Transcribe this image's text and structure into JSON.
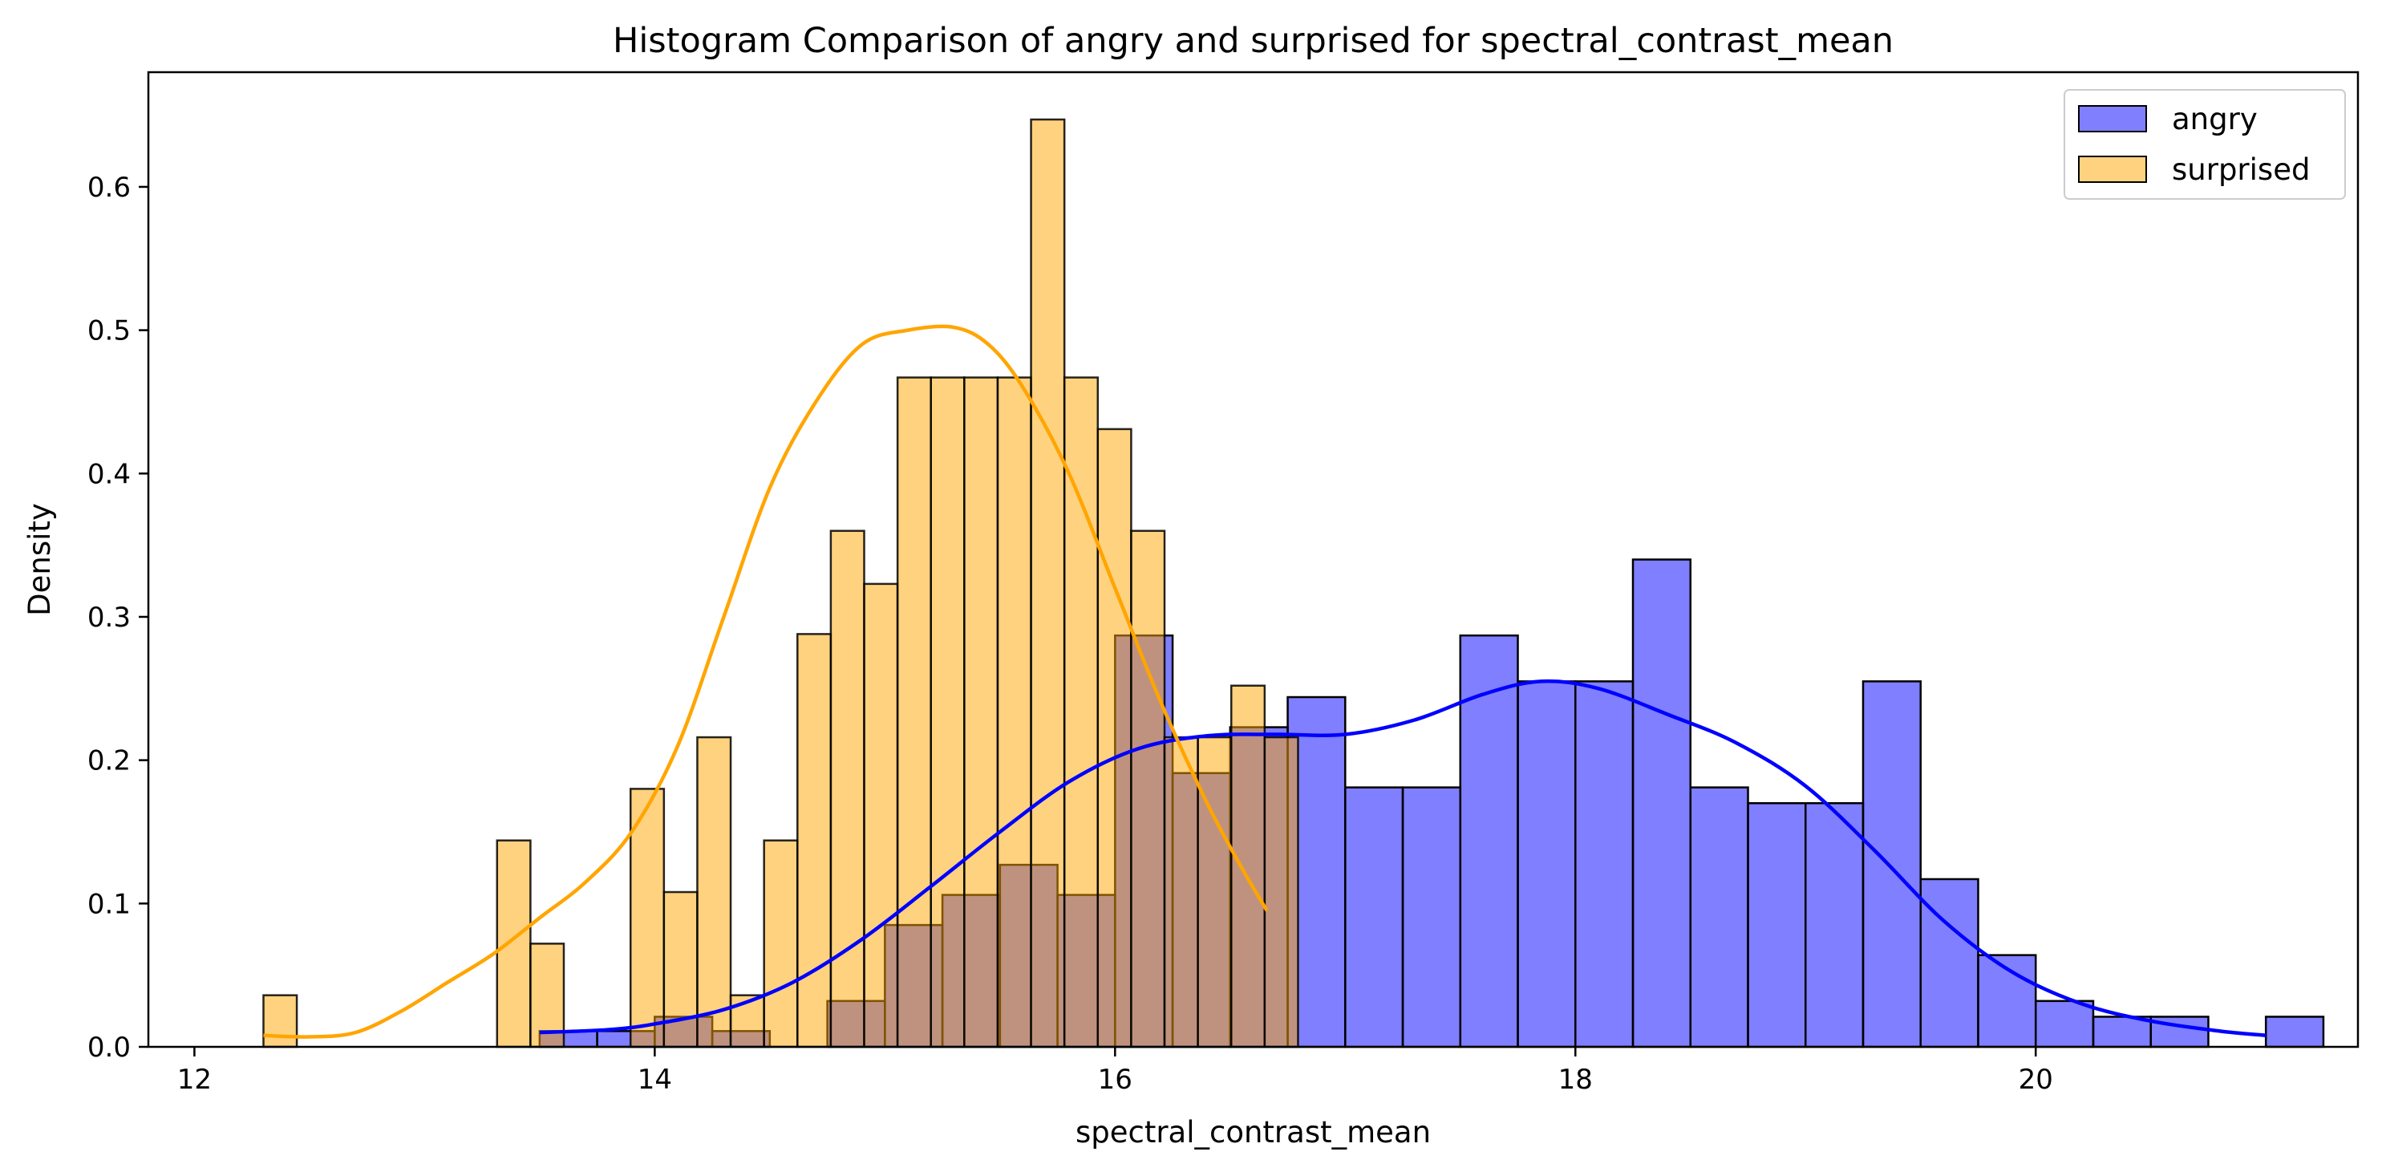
{
  "chart_data": {
    "type": "bar",
    "subtype": "overlaid histogram with kde curves",
    "title": "Histogram Comparison of angry and surprised for spectral_contrast_mean",
    "xlabel": "spectral_contrast_mean",
    "ylabel": "Density",
    "xlim": [
      11.8,
      21.4
    ],
    "ylim": [
      0,
      0.68
    ],
    "xticks": [
      12,
      14,
      16,
      18,
      20
    ],
    "yticks": [
      0.0,
      0.1,
      0.2,
      0.3,
      0.4,
      0.5,
      0.6
    ],
    "xtick_labels": [
      "12",
      "14",
      "16",
      "18",
      "20"
    ],
    "ytick_labels": [
      "0.0",
      "0.1",
      "0.2",
      "0.3",
      "0.4",
      "0.5",
      "0.6"
    ],
    "grid": false,
    "legend_position": "top-right",
    "series": [
      {
        "name": "angry",
        "color": "#0000ff",
        "fill_color": "#8080ff",
        "bin_start": 13.5,
        "bin_width": 0.25,
        "values": [
          0.011,
          0.011,
          0.021,
          0.011,
          0.0,
          0.032,
          0.085,
          0.106,
          0.127,
          0.106,
          0.287,
          0.191,
          0.223,
          0.244,
          0.181,
          0.181,
          0.287,
          0.255,
          0.255,
          0.34,
          0.181,
          0.17,
          0.17,
          0.255,
          0.117,
          0.064,
          0.032,
          0.021,
          0.021,
          0.0,
          0.021
        ],
        "kde": {
          "x": [
            13.5,
            13.8,
            14.0,
            14.3,
            14.6,
            14.9,
            15.2,
            15.5,
            15.8,
            16.1,
            16.4,
            16.7,
            17.0,
            17.3,
            17.6,
            17.85,
            18.1,
            18.4,
            18.7,
            19.0,
            19.3,
            19.6,
            19.9,
            20.2,
            20.5,
            20.8,
            21.0
          ],
          "y": [
            0.01,
            0.012,
            0.016,
            0.026,
            0.045,
            0.075,
            0.112,
            0.15,
            0.185,
            0.208,
            0.217,
            0.218,
            0.218,
            0.228,
            0.246,
            0.255,
            0.25,
            0.232,
            0.212,
            0.182,
            0.137,
            0.088,
            0.052,
            0.03,
            0.018,
            0.011,
            0.008
          ]
        }
      },
      {
        "name": "surprised",
        "color": "#ffa500",
        "fill_color": "#ffd280",
        "bin_start": 12.3,
        "bin_width": 0.145,
        "values": [
          0.036,
          0,
          0,
          0,
          0,
          0,
          0,
          0.144,
          0.072,
          0,
          0,
          0.18,
          0.108,
          0.216,
          0.036,
          0.144,
          0.288,
          0.36,
          0.323,
          0.467,
          0.467,
          0.467,
          0.467,
          0.647,
          0.467,
          0.431,
          0.36,
          0.216,
          0.216,
          0.252,
          0.216,
          0
        ],
        "kde": {
          "x": [
            12.3,
            12.5,
            12.7,
            12.9,
            13.1,
            13.3,
            13.5,
            13.7,
            13.9,
            14.1,
            14.3,
            14.5,
            14.7,
            14.9,
            15.1,
            15.3,
            15.45,
            15.6,
            15.8,
            16.0,
            16.2,
            16.4,
            16.55,
            16.66
          ],
          "y": [
            0.008,
            0.007,
            0.01,
            0.025,
            0.045,
            0.065,
            0.09,
            0.115,
            0.15,
            0.21,
            0.3,
            0.39,
            0.45,
            0.49,
            0.5,
            0.502,
            0.49,
            0.46,
            0.4,
            0.32,
            0.24,
            0.17,
            0.125,
            0.095
          ]
        }
      }
    ]
  }
}
